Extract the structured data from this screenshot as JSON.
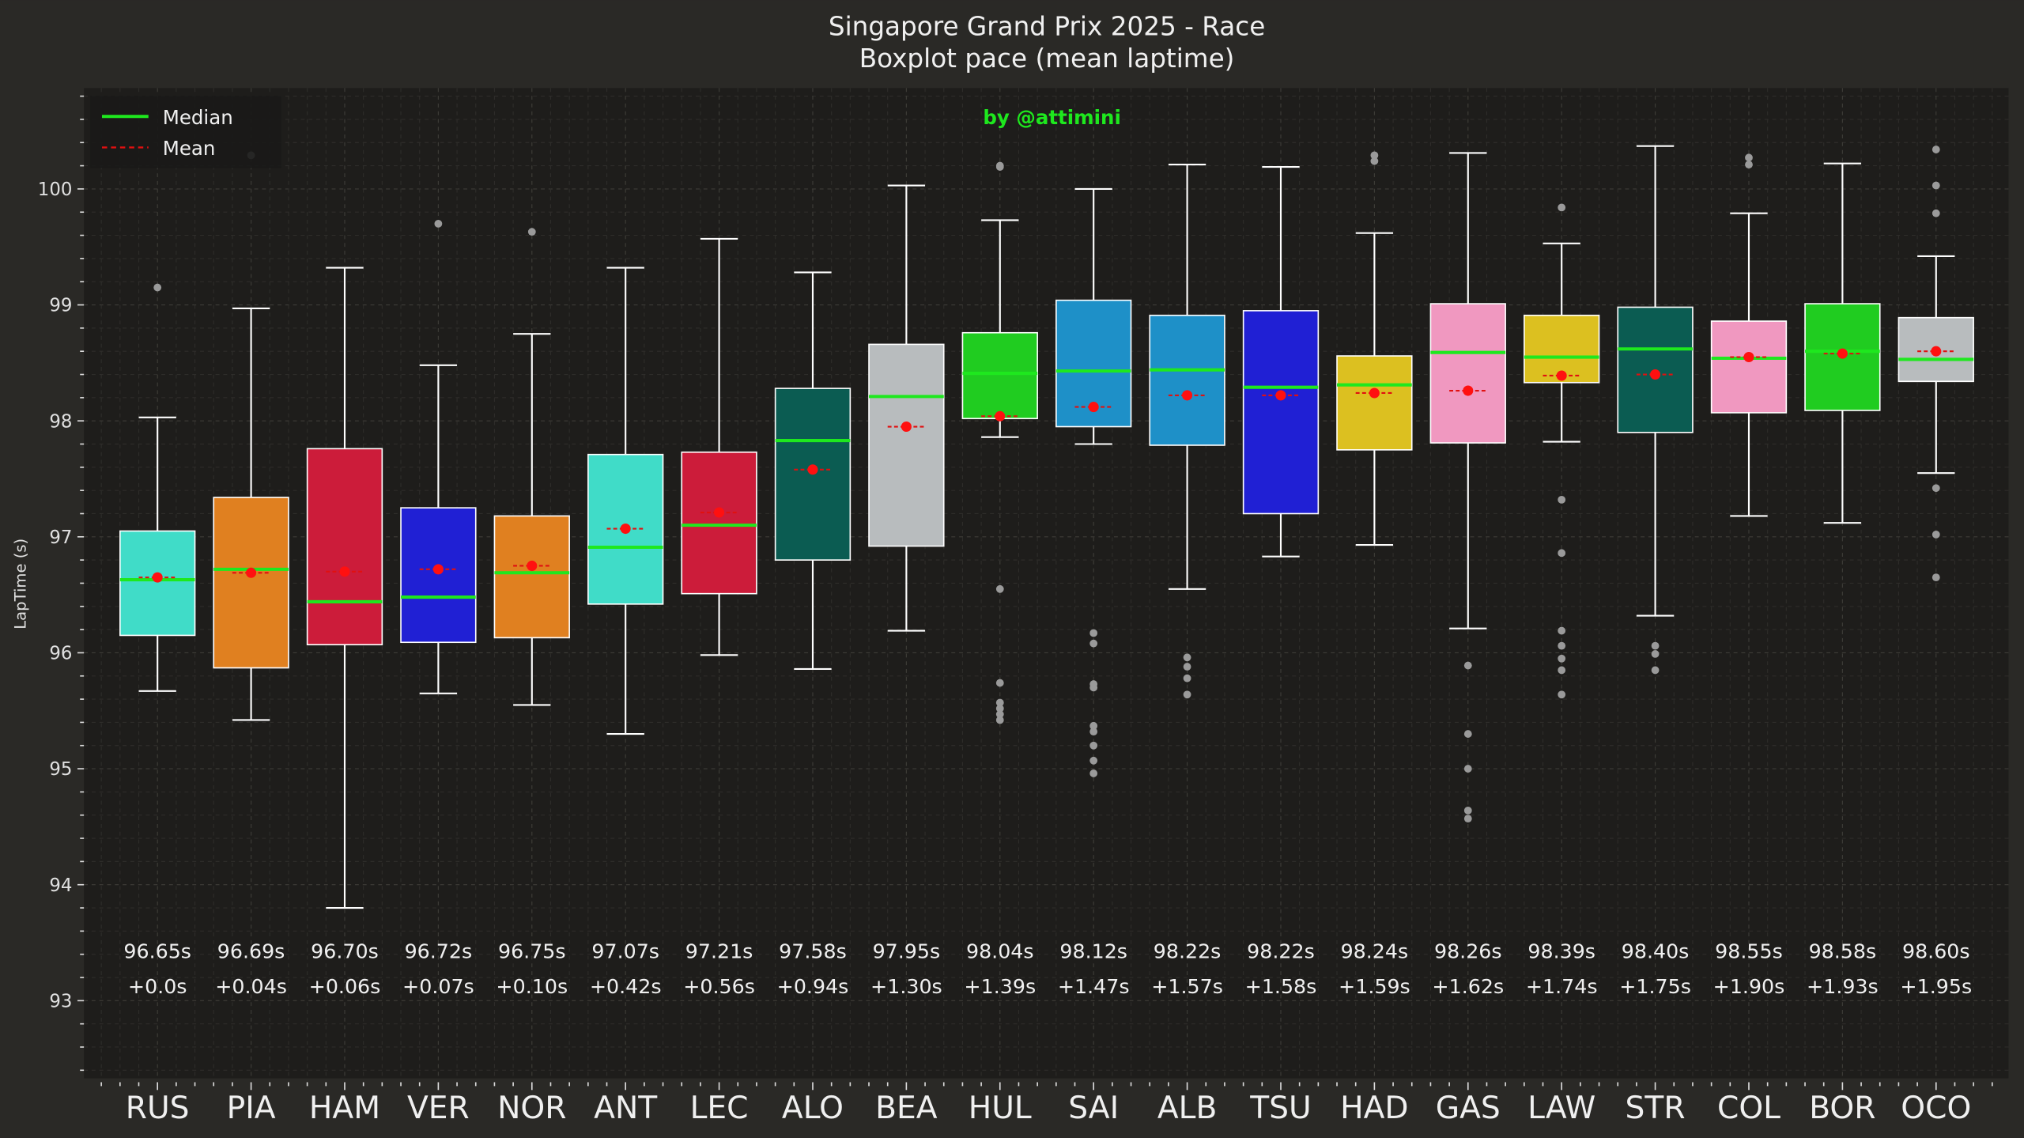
{
  "chart_data": {
    "type": "box",
    "title": "Singapore Grand Prix 2025 - Race",
    "subtitle": "Boxplot pace (mean laptime)",
    "watermark": "by @attimini",
    "xlabel": "",
    "ylabel": "LapTime (s)",
    "ylim": [
      92.33,
      100.87
    ],
    "yticks": [
      93,
      94,
      95,
      96,
      97,
      98,
      99,
      100
    ],
    "grid": true,
    "legend": {
      "placement": "top-left",
      "entries": [
        {
          "label": "Median",
          "color": "#1ee81e",
          "style": "solid"
        },
        {
          "label": "Mean",
          "color": "#e01010",
          "style": "dashed"
        }
      ]
    },
    "colors": {
      "median": "#1ee81e",
      "mean": "#ff1010",
      "whisker": "#ffffff",
      "outlier": "#9a9a9a",
      "watermark": "#1ee81e"
    },
    "drivers": [
      {
        "name": "RUS",
        "color": "#40dcc8",
        "q1": 96.15,
        "median": 96.63,
        "q3": 97.05,
        "low": 95.67,
        "high": 98.03,
        "mean": 96.65,
        "mean_label": "96.65s",
        "delta_label": "+0.0s",
        "outliers": [
          99.15
        ]
      },
      {
        "name": "PIA",
        "color": "#e08020",
        "q1": 95.87,
        "median": 96.72,
        "q3": 97.34,
        "low": 95.42,
        "high": 98.97,
        "mean": 96.69,
        "mean_label": "96.69s",
        "delta_label": "+0.04s",
        "outliers": [
          100.29
        ]
      },
      {
        "name": "HAM",
        "color": "#cc1c3a",
        "q1": 96.07,
        "median": 96.44,
        "q3": 97.76,
        "low": 93.8,
        "high": 99.32,
        "mean": 96.7,
        "mean_label": "96.70s",
        "delta_label": "+0.06s",
        "outliers": []
      },
      {
        "name": "VER",
        "color": "#2020d4",
        "q1": 96.09,
        "median": 96.48,
        "q3": 97.25,
        "low": 95.65,
        "high": 98.48,
        "mean": 96.72,
        "mean_label": "96.72s",
        "delta_label": "+0.07s",
        "outliers": [
          99.7
        ]
      },
      {
        "name": "NOR",
        "color": "#e08020",
        "q1": 96.13,
        "median": 96.69,
        "q3": 97.18,
        "low": 95.55,
        "high": 98.75,
        "mean": 96.75,
        "mean_label": "96.75s",
        "delta_label": "+0.10s",
        "outliers": [
          99.63
        ]
      },
      {
        "name": "ANT",
        "color": "#40dcc8",
        "q1": 96.42,
        "median": 96.91,
        "q3": 97.71,
        "low": 95.3,
        "high": 99.32,
        "mean": 97.07,
        "mean_label": "97.07s",
        "delta_label": "+0.42s",
        "outliers": []
      },
      {
        "name": "LEC",
        "color": "#cc1c3a",
        "q1": 96.51,
        "median": 97.1,
        "q3": 97.73,
        "low": 95.98,
        "high": 99.57,
        "mean": 97.21,
        "mean_label": "97.21s",
        "delta_label": "+0.56s",
        "outliers": []
      },
      {
        "name": "ALO",
        "color": "#0b5c52",
        "q1": 96.8,
        "median": 97.83,
        "q3": 98.28,
        "low": 95.86,
        "high": 99.28,
        "mean": 97.58,
        "mean_label": "97.58s",
        "delta_label": "+0.94s",
        "outliers": []
      },
      {
        "name": "BEA",
        "color": "#b8bcbe",
        "q1": 96.92,
        "median": 98.21,
        "q3": 98.66,
        "low": 96.19,
        "high": 100.03,
        "mean": 97.95,
        "mean_label": "97.95s",
        "delta_label": "+1.30s",
        "outliers": []
      },
      {
        "name": "HUL",
        "color": "#20cc20",
        "q1": 98.02,
        "median": 98.41,
        "q3": 98.76,
        "low": 97.86,
        "high": 99.73,
        "mean": 98.04,
        "mean_label": "98.04s",
        "delta_label": "+1.39s",
        "outliers": [
          100.2,
          100.19,
          96.55,
          95.74,
          95.57,
          95.52,
          95.47,
          95.42
        ]
      },
      {
        "name": "SAI",
        "color": "#1e90c8",
        "q1": 97.95,
        "median": 98.43,
        "q3": 99.04,
        "low": 97.8,
        "high": 100.0,
        "mean": 98.12,
        "mean_label": "98.12s",
        "delta_label": "+1.47s",
        "outliers": [
          96.17,
          96.08,
          95.73,
          95.7,
          95.37,
          95.32,
          95.2,
          95.07,
          94.96
        ]
      },
      {
        "name": "ALB",
        "color": "#1e90c8",
        "q1": 97.79,
        "median": 98.44,
        "q3": 98.91,
        "low": 96.55,
        "high": 100.21,
        "mean": 98.22,
        "mean_label": "98.22s",
        "delta_label": "+1.57s",
        "outliers": [
          95.96,
          95.88,
          95.78,
          95.64
        ]
      },
      {
        "name": "TSU",
        "color": "#2020d4",
        "q1": 97.2,
        "median": 98.29,
        "q3": 98.95,
        "low": 96.83,
        "high": 100.19,
        "mean": 98.22,
        "mean_label": "98.22s",
        "delta_label": "+1.58s",
        "outliers": []
      },
      {
        "name": "HAD",
        "color": "#dcc020",
        "q1": 97.75,
        "median": 98.31,
        "q3": 98.56,
        "low": 96.93,
        "high": 99.62,
        "mean": 98.24,
        "mean_label": "98.24s",
        "delta_label": "+1.59s",
        "outliers": [
          100.29,
          100.24
        ]
      },
      {
        "name": "GAS",
        "color": "#f098c0",
        "q1": 97.81,
        "median": 98.59,
        "q3": 99.01,
        "low": 96.21,
        "high": 100.31,
        "mean": 98.26,
        "mean_label": "98.26s",
        "delta_label": "+1.62s",
        "outliers": [
          95.89,
          95.3,
          95.0,
          94.64,
          94.57
        ]
      },
      {
        "name": "LAW",
        "color": "#dcc020",
        "q1": 98.33,
        "median": 98.55,
        "q3": 98.91,
        "low": 97.82,
        "high": 99.53,
        "mean": 98.39,
        "mean_label": "98.39s",
        "delta_label": "+1.74s",
        "outliers": [
          99.84,
          97.32,
          96.86,
          96.19,
          96.06,
          95.95,
          95.85,
          95.64
        ]
      },
      {
        "name": "STR",
        "color": "#0b5c52",
        "q1": 97.9,
        "median": 98.62,
        "q3": 98.98,
        "low": 96.32,
        "high": 100.37,
        "mean": 98.4,
        "mean_label": "98.40s",
        "delta_label": "+1.75s",
        "outliers": [
          96.06,
          95.99,
          95.85
        ]
      },
      {
        "name": "COL",
        "color": "#f098c0",
        "q1": 98.07,
        "median": 98.54,
        "q3": 98.86,
        "low": 97.18,
        "high": 99.79,
        "mean": 98.55,
        "mean_label": "98.55s",
        "delta_label": "+1.90s",
        "outliers": [
          100.27,
          100.21
        ]
      },
      {
        "name": "BOR",
        "color": "#20cc20",
        "q1": 98.09,
        "median": 98.6,
        "q3": 99.01,
        "low": 97.12,
        "high": 100.22,
        "mean": 98.58,
        "mean_label": "98.58s",
        "delta_label": "+1.93s",
        "outliers": []
      },
      {
        "name": "OCO",
        "color": "#b8bcbe",
        "q1": 98.34,
        "median": 98.53,
        "q3": 98.89,
        "low": 97.55,
        "high": 99.42,
        "mean": 98.6,
        "mean_label": "98.60s",
        "delta_label": "+1.95s",
        "outliers": [
          100.34,
          100.03,
          99.79,
          97.42,
          97.02,
          96.65
        ]
      }
    ]
  }
}
